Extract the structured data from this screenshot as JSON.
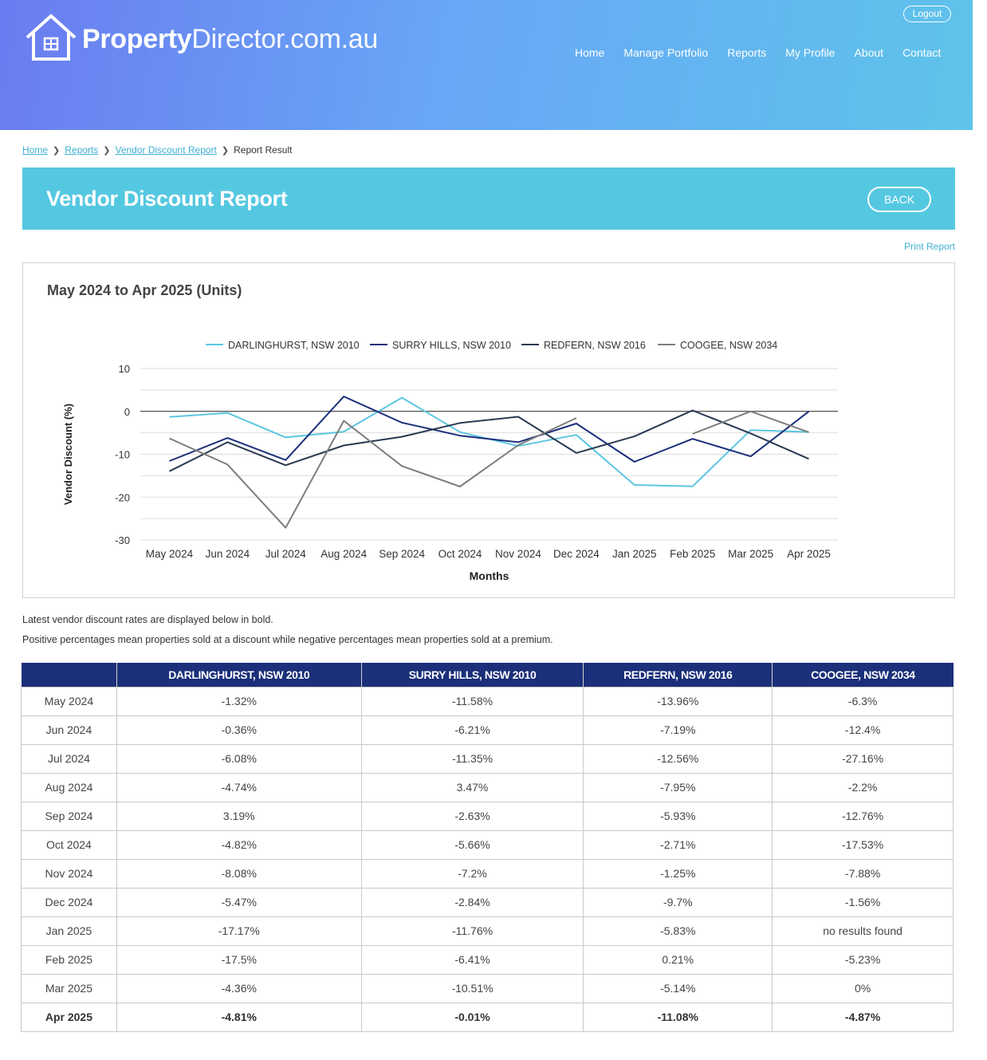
{
  "header": {
    "brand_bold": "Property",
    "brand_light": "Director.com.au",
    "logout_label": "Logout",
    "nav": [
      "Home",
      "Manage Portfolio",
      "Reports",
      "My Profile",
      "About",
      "Contact"
    ]
  },
  "breadcrumb": {
    "home": "Home",
    "reports": "Reports",
    "vendor": "Vendor Discount Report",
    "current": "Report Result"
  },
  "page": {
    "title": "Vendor Discount Report",
    "back_label": "BACK",
    "print_label": "Print Report"
  },
  "chart_data": {
    "type": "line",
    "title": "May 2024 to Apr 2025 (Units)",
    "xlabel": "Months",
    "ylabel": "Vendor Discount (%)",
    "ylim": [
      -30,
      10
    ],
    "yticks": [
      10,
      0,
      -10,
      -20,
      -30
    ],
    "grid": true,
    "legend_position": "top",
    "categories": [
      "May 2024",
      "Jun 2024",
      "Jul 2024",
      "Aug 2024",
      "Sep 2024",
      "Oct 2024",
      "Nov 2024",
      "Dec 2024",
      "Jan 2025",
      "Feb 2025",
      "Mar 2025",
      "Apr 2025"
    ],
    "series": [
      {
        "name": "DARLINGHURST, NSW 2010",
        "color": "#5bc6e0",
        "values": [
          -1.32,
          -0.36,
          -6.08,
          -4.74,
          3.19,
          -4.82,
          -8.08,
          -5.47,
          -17.17,
          -17.5,
          -4.36,
          -4.81
        ]
      },
      {
        "name": "SURRY HILLS, NSW 2010",
        "color": "#1b2f7a",
        "values": [
          -11.58,
          -6.21,
          -11.35,
          3.47,
          -2.63,
          -5.66,
          -7.2,
          -2.84,
          -11.76,
          -6.41,
          -10.51,
          -0.01
        ]
      },
      {
        "name": "REDFERN, NSW 2016",
        "color": "#2a3a52",
        "values": [
          -13.96,
          -7.19,
          -12.56,
          -7.95,
          -5.93,
          -2.71,
          -1.25,
          -9.7,
          -5.83,
          0.21,
          -5.14,
          -11.08
        ]
      },
      {
        "name": "COOGEE, NSW 2034",
        "color": "#7d7d7d",
        "values": [
          -6.3,
          -12.4,
          -27.16,
          -2.2,
          -12.76,
          -17.53,
          -7.88,
          -1.56,
          null,
          -5.23,
          0,
          -4.87
        ]
      }
    ]
  },
  "notes": {
    "line1": "Latest vendor discount rates are displayed below in bold.",
    "line2": "Positive percentages mean properties sold at a discount while negative percentages mean properties sold at a premium."
  },
  "table": {
    "headers": [
      "",
      "DARLINGHURST, NSW 2010",
      "SURRY HILLS, NSW 2010",
      "REDFERN, NSW 2016",
      "COOGEE, NSW 2034"
    ],
    "rows": [
      [
        "May 2024",
        "-1.32%",
        "-11.58%",
        "-13.96%",
        "-6.3%"
      ],
      [
        "Jun 2024",
        "-0.36%",
        "-6.21%",
        "-7.19%",
        "-12.4%"
      ],
      [
        "Jul 2024",
        "-6.08%",
        "-11.35%",
        "-12.56%",
        "-27.16%"
      ],
      [
        "Aug 2024",
        "-4.74%",
        "3.47%",
        "-7.95%",
        "-2.2%"
      ],
      [
        "Sep 2024",
        "3.19%",
        "-2.63%",
        "-5.93%",
        "-12.76%"
      ],
      [
        "Oct 2024",
        "-4.82%",
        "-5.66%",
        "-2.71%",
        "-17.53%"
      ],
      [
        "Nov 2024",
        "-8.08%",
        "-7.2%",
        "-1.25%",
        "-7.88%"
      ],
      [
        "Dec 2024",
        "-5.47%",
        "-2.84%",
        "-9.7%",
        "-1.56%"
      ],
      [
        "Jan 2025",
        "-17.17%",
        "-11.76%",
        "-5.83%",
        "no results found"
      ],
      [
        "Feb 2025",
        "-17.5%",
        "-6.41%",
        "0.21%",
        "-5.23%"
      ],
      [
        "Mar 2025",
        "-4.36%",
        "-10.51%",
        "-5.14%",
        "0%"
      ],
      [
        "Apr 2025",
        "-4.81%",
        "-0.01%",
        "-11.08%",
        "-4.87%"
      ]
    ]
  }
}
